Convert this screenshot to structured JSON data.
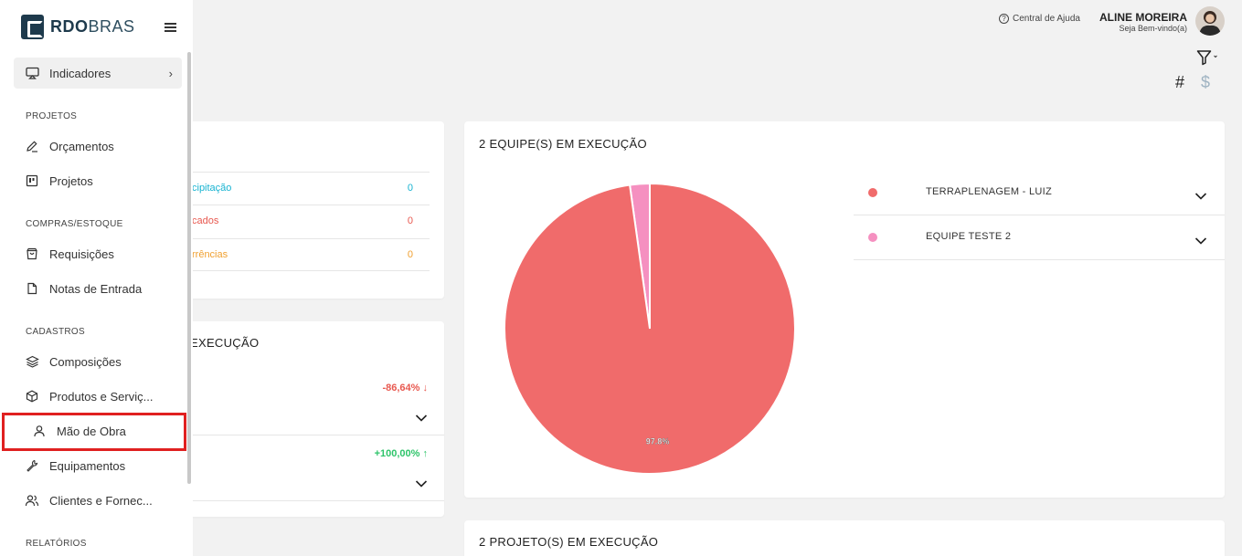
{
  "app": {
    "logo_bold": "RDO",
    "logo_light": "BRAS"
  },
  "sidebar": {
    "indicadores": "Indicadores",
    "sections": {
      "projetos": "PROJETOS",
      "compras": "COMPRAS/ESTOQUE",
      "cadastros": "CADASTROS",
      "relatorios": "RELATÓRIOS"
    },
    "items": {
      "orcamentos": "Orçamentos",
      "projetos": "Projetos",
      "requisicoes": "Requisições",
      "notas": "Notas de Entrada",
      "composicoes": "Composições",
      "produtos": "Produtos e Serviç...",
      "mao_de_obra": "Mão de Obra",
      "equipamentos": "Equipamentos",
      "clientes": "Clientes e Fornec..."
    }
  },
  "header": {
    "help": "Central de Ajuda",
    "user_name": "ALINE MOREIRA",
    "user_greeting": "Seja Bem-vindo(a)",
    "hash": "#",
    "dollar": "$"
  },
  "card1": {
    "rows": [
      {
        "label": "cipitação",
        "value": "0",
        "color": "#17b3d1"
      },
      {
        "label": "cados",
        "value": "0",
        "color": "#e8584f"
      },
      {
        "label": "rrências",
        "value": "0",
        "color": "#f0a030"
      }
    ]
  },
  "card2": {
    "title": "EXECUÇÃO",
    "items": [
      {
        "change": "-86,64%",
        "arrow": "↓"
      },
      {
        "change": "+100,00%",
        "arrow": "↑"
      }
    ]
  },
  "teams_card": {
    "title": "2 EQUIPE(S) EM EXECUÇÃO",
    "legend": [
      {
        "name": "TERRAPLENAGEM - LUIZ",
        "color": "#f06b6b"
      },
      {
        "name": "EQUIPE TESTE 2",
        "color": "#f590c0"
      }
    ]
  },
  "projects_card": {
    "title": "2 PROJETO(S) EM EXECUÇÃO"
  },
  "chart_data": {
    "type": "pie",
    "categories": [
      "TERRAPLENAGEM - LUIZ",
      "EQUIPE TESTE 2"
    ],
    "values": [
      97.8,
      2.2
    ],
    "colors": [
      "#f06b6b",
      "#f590c0"
    ],
    "data_labels": [
      "97.8%",
      ""
    ]
  }
}
